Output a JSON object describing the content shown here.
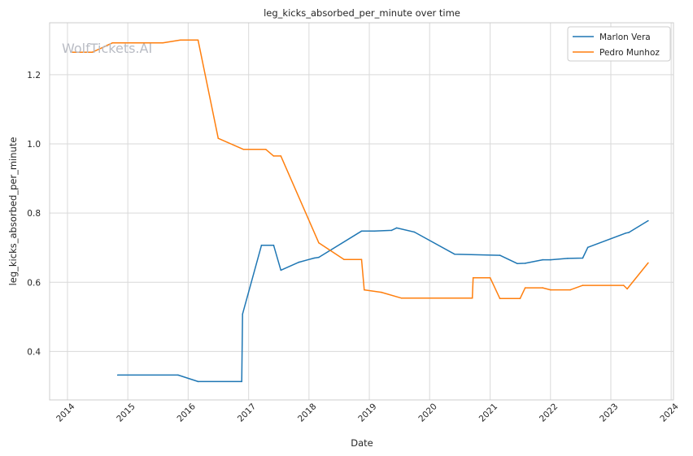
{
  "chart_data": {
    "type": "line",
    "title": "leg_kicks_absorbed_per_minute over time",
    "xlabel": "Date",
    "ylabel": "leg_kicks_absorbed_per_minute",
    "watermark": "WolfTickets.AI",
    "xlim": [
      "2013-09-15",
      "2024-01-15"
    ],
    "ylim": [
      0.26,
      1.35
    ],
    "x_ticks": [
      "2014",
      "2015",
      "2016",
      "2017",
      "2018",
      "2019",
      "2020",
      "2021",
      "2022",
      "2023",
      "2024"
    ],
    "y_ticks": [
      0.4,
      0.6,
      0.8,
      1.0,
      1.2
    ],
    "grid": true,
    "legend_position": "top-right",
    "series": [
      {
        "name": "Marlon Vera",
        "color": "#1f77b4",
        "x": [
          "2014-11-01",
          "2015-11-01",
          "2016-03-01",
          "2016-11-20",
          "2016-11-25",
          "2017-03-20",
          "2017-06-01",
          "2017-07-15",
          "2017-11-01",
          "2018-02-01",
          "2018-03-01",
          "2018-11-15",
          "2019-02-01",
          "2019-05-15",
          "2019-06-15",
          "2019-10-01",
          "2020-06-01",
          "2021-03-01",
          "2021-06-15",
          "2021-08-01",
          "2021-11-15",
          "2022-01-01",
          "2022-04-15",
          "2022-07-15",
          "2022-08-15",
          "2023-04-01",
          "2023-04-20",
          "2023-08-15"
        ],
        "values": [
          0.332,
          0.332,
          0.313,
          0.313,
          0.508,
          0.707,
          0.707,
          0.635,
          0.658,
          0.67,
          0.672,
          0.748,
          0.748,
          0.75,
          0.757,
          0.745,
          0.681,
          0.678,
          0.654,
          0.655,
          0.665,
          0.665,
          0.669,
          0.67,
          0.701,
          0.742,
          0.744,
          0.778
        ]
      },
      {
        "name": "Pedro Munhoz",
        "color": "#ff7f0e",
        "x": [
          "2014-02-01",
          "2014-06-01",
          "2014-10-01",
          "2015-08-01",
          "2015-11-15",
          "2016-03-01",
          "2016-07-01",
          "2016-12-01",
          "2017-04-15",
          "2017-06-01",
          "2017-07-15",
          "2018-03-01",
          "2018-08-01",
          "2018-11-15",
          "2018-12-01",
          "2019-03-15",
          "2019-07-15",
          "2020-09-15",
          "2020-09-20",
          "2021-01-01",
          "2021-03-01",
          "2021-07-01",
          "2021-08-01",
          "2021-11-15",
          "2022-01-01",
          "2022-05-01",
          "2022-07-15",
          "2023-03-20",
          "2023-04-10",
          "2023-08-15"
        ],
        "values": [
          1.265,
          1.265,
          1.292,
          1.292,
          1.3,
          1.3,
          1.016,
          0.984,
          0.984,
          0.965,
          0.965,
          0.714,
          0.666,
          0.666,
          0.578,
          0.571,
          0.554,
          0.554,
          0.613,
          0.613,
          0.553,
          0.553,
          0.584,
          0.584,
          0.578,
          0.578,
          0.591,
          0.591,
          0.581,
          0.656
        ]
      }
    ]
  }
}
